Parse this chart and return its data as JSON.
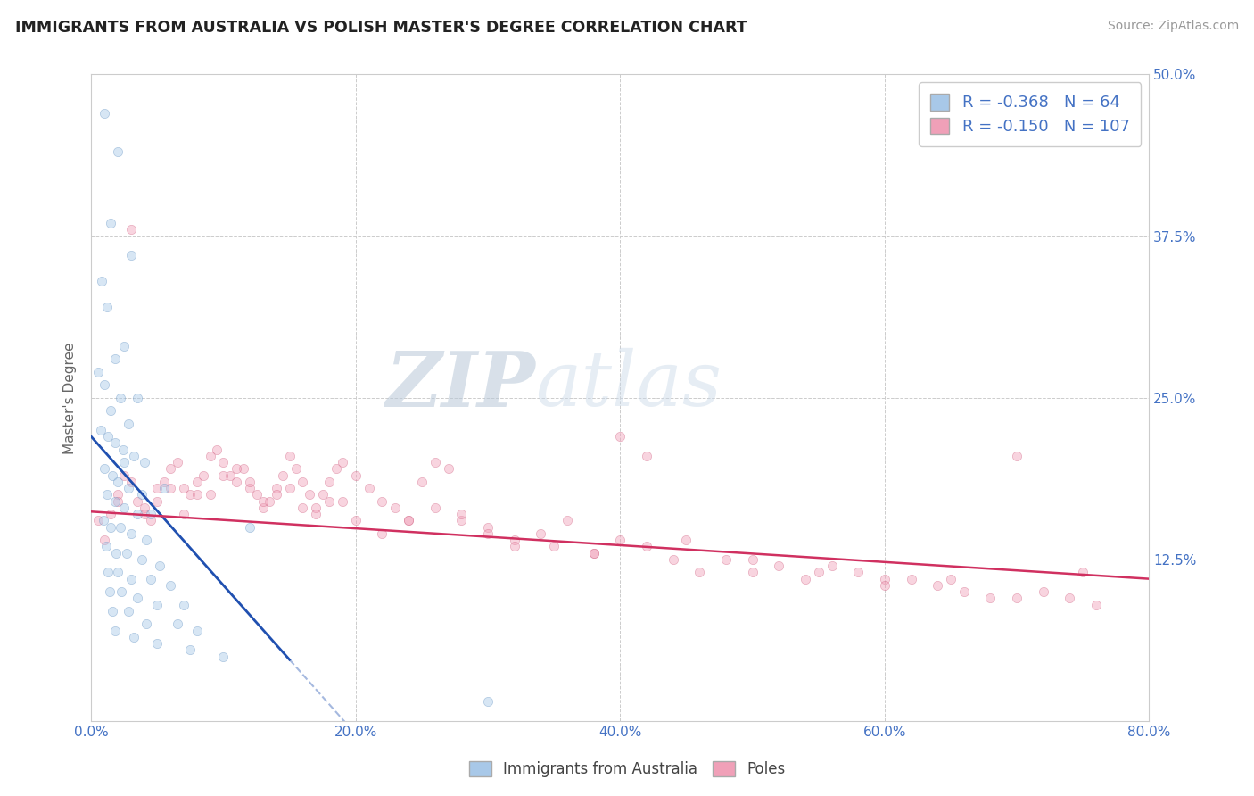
{
  "title": "IMMIGRANTS FROM AUSTRALIA VS POLISH MASTER'S DEGREE CORRELATION CHART",
  "source": "Source: ZipAtlas.com",
  "xlabel_vals": [
    0.0,
    20.0,
    40.0,
    60.0,
    80.0
  ],
  "ylabel_right_vals": [
    12.5,
    25.0,
    37.5,
    50.0
  ],
  "xlim": [
    0.0,
    80.0
  ],
  "ylim": [
    0.0,
    50.0
  ],
  "blue_color": "#A8C8E8",
  "blue_edge": "#6090C0",
  "pink_color": "#F0A0B8",
  "pink_edge": "#D06080",
  "blue_line_color": "#2050B0",
  "pink_line_color": "#D03060",
  "R_blue": -0.368,
  "N_blue": 64,
  "R_pink": -0.15,
  "N_pink": 107,
  "legend_label_blue": "Immigrants from Australia",
  "legend_label_pink": "Poles",
  "blue_x": [
    1.0,
    2.0,
    1.5,
    3.0,
    0.8,
    1.2,
    2.5,
    1.8,
    0.5,
    1.0,
    2.2,
    3.5,
    1.5,
    2.8,
    0.7,
    1.3,
    1.8,
    2.4,
    3.2,
    4.0,
    1.0,
    1.6,
    2.0,
    2.8,
    3.8,
    1.2,
    1.8,
    2.5,
    3.5,
    4.5,
    0.9,
    1.5,
    2.2,
    3.0,
    4.2,
    1.1,
    1.9,
    2.7,
    3.8,
    5.2,
    1.3,
    2.0,
    3.0,
    4.5,
    6.0,
    1.4,
    2.3,
    3.5,
    5.0,
    7.0,
    1.6,
    2.8,
    4.2,
    6.5,
    8.0,
    1.8,
    3.2,
    5.0,
    7.5,
    10.0,
    2.5,
    5.5,
    12.0,
    30.0
  ],
  "blue_y": [
    47.0,
    44.0,
    38.5,
    36.0,
    34.0,
    32.0,
    29.0,
    28.0,
    27.0,
    26.0,
    25.0,
    25.0,
    24.0,
    23.0,
    22.5,
    22.0,
    21.5,
    21.0,
    20.5,
    20.0,
    19.5,
    19.0,
    18.5,
    18.0,
    17.5,
    17.5,
    17.0,
    16.5,
    16.0,
    16.0,
    15.5,
    15.0,
    15.0,
    14.5,
    14.0,
    13.5,
    13.0,
    13.0,
    12.5,
    12.0,
    11.5,
    11.5,
    11.0,
    11.0,
    10.5,
    10.0,
    10.0,
    9.5,
    9.0,
    9.0,
    8.5,
    8.5,
    7.5,
    7.5,
    7.0,
    7.0,
    6.5,
    6.0,
    5.5,
    5.0,
    20.0,
    18.0,
    15.0,
    1.5
  ],
  "pink_x": [
    0.5,
    1.0,
    1.5,
    2.0,
    2.5,
    3.0,
    3.5,
    4.0,
    4.5,
    5.0,
    5.5,
    6.0,
    6.5,
    7.0,
    7.5,
    8.0,
    8.5,
    9.0,
    9.5,
    10.0,
    10.5,
    11.0,
    11.5,
    12.0,
    12.5,
    13.0,
    13.5,
    14.0,
    14.5,
    15.0,
    15.5,
    16.0,
    16.5,
    17.0,
    17.5,
    18.0,
    18.5,
    19.0,
    20.0,
    21.0,
    22.0,
    23.0,
    24.0,
    25.0,
    26.0,
    27.0,
    28.0,
    30.0,
    32.0,
    35.0,
    38.0,
    40.0,
    42.0,
    45.0,
    50.0,
    55.0,
    60.0,
    65.0,
    70.0,
    75.0,
    2.0,
    4.0,
    6.0,
    8.0,
    10.0,
    12.0,
    14.0,
    16.0,
    18.0,
    20.0,
    22.0,
    24.0,
    26.0,
    28.0,
    30.0,
    32.0,
    34.0,
    36.0,
    38.0,
    40.0,
    42.0,
    44.0,
    46.0,
    48.0,
    50.0,
    52.0,
    54.0,
    56.0,
    58.0,
    60.0,
    62.0,
    64.0,
    66.0,
    68.0,
    70.0,
    72.0,
    74.0,
    76.0,
    3.0,
    5.0,
    7.0,
    9.0,
    11.0,
    13.0,
    15.0,
    17.0,
    19.0
  ],
  "pink_y": [
    15.5,
    14.0,
    16.0,
    17.5,
    19.0,
    18.5,
    17.0,
    16.5,
    15.5,
    17.0,
    18.5,
    19.5,
    20.0,
    18.0,
    17.5,
    18.5,
    19.0,
    20.5,
    21.0,
    20.0,
    19.0,
    18.5,
    19.5,
    18.0,
    17.5,
    16.5,
    17.0,
    18.0,
    19.0,
    20.5,
    19.5,
    18.5,
    17.5,
    16.5,
    17.5,
    18.5,
    19.5,
    20.0,
    19.0,
    18.0,
    17.0,
    16.5,
    15.5,
    18.5,
    20.0,
    19.5,
    15.5,
    15.0,
    14.0,
    13.5,
    13.0,
    22.0,
    20.5,
    14.0,
    12.5,
    11.5,
    11.0,
    11.0,
    20.5,
    11.5,
    17.0,
    16.0,
    18.0,
    17.5,
    19.0,
    18.5,
    17.5,
    16.5,
    17.0,
    15.5,
    14.5,
    15.5,
    16.5,
    16.0,
    14.5,
    13.5,
    14.5,
    15.5,
    13.0,
    14.0,
    13.5,
    12.5,
    11.5,
    12.5,
    11.5,
    12.0,
    11.0,
    12.0,
    11.5,
    10.5,
    11.0,
    10.5,
    10.0,
    9.5,
    9.5,
    10.0,
    9.5,
    9.0,
    38.0,
    18.0,
    16.0,
    17.5,
    19.5,
    17.0,
    18.0,
    16.0,
    17.0
  ],
  "watermark_zip": "ZIP",
  "watermark_atlas": "atlas",
  "bg_color": "#FFFFFF",
  "grid_color": "#CCCCCC",
  "title_color": "#222222",
  "axis_label_color": "#4472C4",
  "marker_size_blue": 55,
  "marker_size_pink": 55,
  "alpha_blue": 0.45,
  "alpha_pink": 0.45,
  "blue_line_x_solid_end": 15.0,
  "blue_line_intercept": 22.0,
  "blue_line_slope": -1.15,
  "pink_line_intercept": 16.2,
  "pink_line_slope": -0.065
}
